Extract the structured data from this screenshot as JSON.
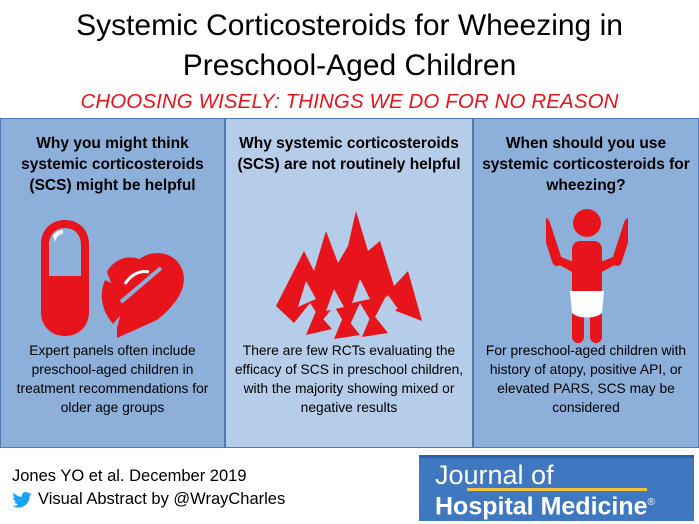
{
  "header": {
    "title_line1": "Systemic Corticosteroids for Wheezing in",
    "title_line2": "Preschool-Aged Children",
    "subtitle": "CHOOSING WISELY: THINGS WE DO FOR NO REASON"
  },
  "panels": [
    {
      "heading": "Why you might think systemic corticosteroids (SCS) might be helpful",
      "body": "Expert panels often include preschool-aged children in treatment recommendations for older age groups",
      "icon": "pills-icon"
    },
    {
      "heading": "Why systemic corticosteroids (SCS) are not routinely helpful",
      "body": "There are few RCTs evaluating the efficacy of SCS in preschool children, with the majority showing mixed or negative results",
      "icon": "mountains-icon"
    },
    {
      "heading": "When should you use systemic corticosteroids for wheezing?",
      "body": "For preschool-aged children with history of atopy, positive API, or elevated PARS, SCS may be considered",
      "icon": "child-icon"
    }
  ],
  "footer": {
    "citation": "Jones YO et al. December 2019",
    "credit": "Visual Abstract by @WrayCharles",
    "twitter_icon": "twitter-icon"
  },
  "journal": {
    "line1": "Journal of",
    "line2": "Hospital Medicine",
    "mark": "®"
  },
  "colors": {
    "accent_red": "#e8141b",
    "panel_dark": "#8db0db",
    "panel_light": "#b5cde9",
    "journal_blue": "#3f78c1",
    "journal_gold": "#f3c23d"
  }
}
